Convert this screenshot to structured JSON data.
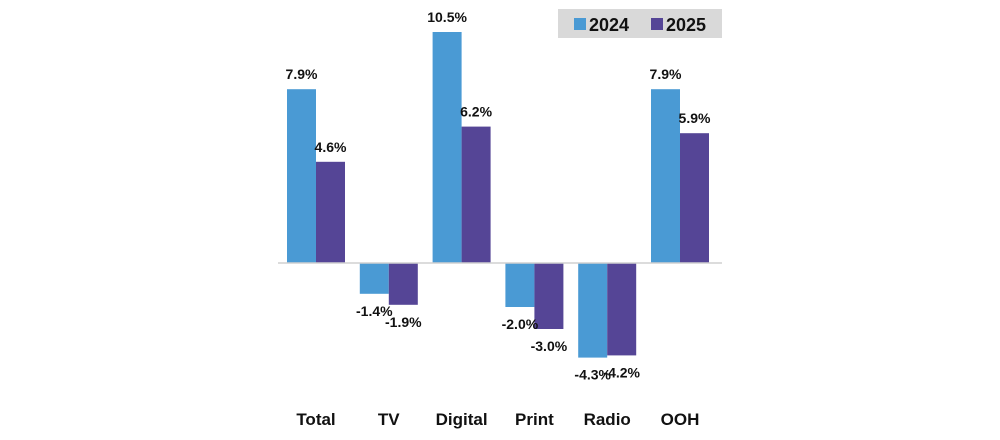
{
  "chart_data": {
    "type": "bar",
    "categories": [
      "Total",
      "TV",
      "Digital",
      "Print",
      "Radio",
      "OOH"
    ],
    "series": [
      {
        "name": "2024",
        "color": "#4a9ad4",
        "values": [
          7.9,
          -1.4,
          10.5,
          -2.0,
          -4.3,
          7.9
        ],
        "labels": [
          "7.9%",
          "-1.4%",
          "10.5%",
          "-2.0%",
          "-4.3%",
          "7.9%"
        ]
      },
      {
        "name": "2025",
        "color": "#554596",
        "values": [
          4.6,
          -1.9,
          6.2,
          -3.0,
          -4.2,
          5.9
        ],
        "labels": [
          "4.6%",
          "-1.9%",
          "6.2%",
          "-3.0%",
          "-4.2%",
          "5.9%"
        ]
      }
    ],
    "title": "",
    "xlabel": "",
    "ylabel": "",
    "ylim": [
      -5,
      11
    ],
    "grid": false,
    "legend_position": "top-right",
    "legend_background": "#d9d9d9",
    "axis_color": "#d0d0d0"
  }
}
